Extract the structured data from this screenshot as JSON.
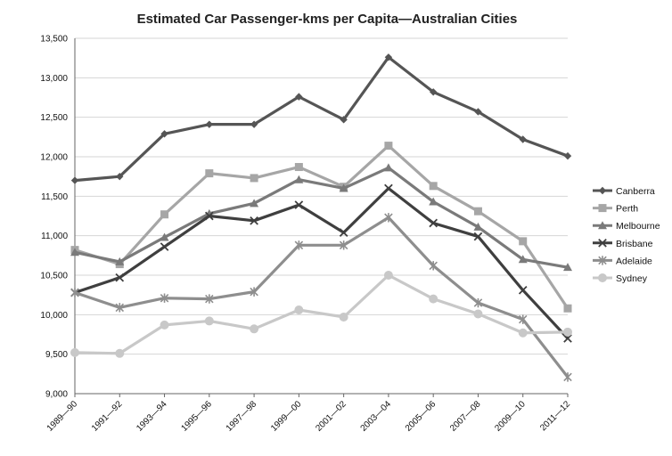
{
  "chart_data": {
    "type": "line",
    "title": "Estimated Car Passenger-kms per Capita—Australian Cities",
    "xlabel": "",
    "ylabel": "",
    "categories": [
      "1989—90",
      "1991—92",
      "1993—94",
      "1995—96",
      "1997—98",
      "1999—00",
      "2001—02",
      "2003—04",
      "2005—06",
      "2007—08",
      "2009—10",
      "2011—12"
    ],
    "ylim": [
      9000,
      13500
    ],
    "yticks": [
      9000,
      9500,
      10000,
      10500,
      11000,
      11500,
      12000,
      12500,
      13000,
      13500
    ],
    "ytick_labels": [
      "9,000",
      "9,500",
      "10,000",
      "10,500",
      "11,000",
      "11,500",
      "12,000",
      "12,500",
      "13,000",
      "13,500"
    ],
    "grid": true,
    "legend_position": "right",
    "series": [
      {
        "name": "Canberra",
        "color": "#555555",
        "marker": "diamond",
        "values": [
          11700,
          11750,
          12290,
          12410,
          12410,
          12760,
          12470,
          13260,
          12820,
          12570,
          12220,
          12010
        ]
      },
      {
        "name": "Perth",
        "color": "#a6a6a6",
        "marker": "square",
        "values": [
          10820,
          10640,
          11270,
          11790,
          11730,
          11870,
          11620,
          12140,
          11630,
          11310,
          10930,
          10080
        ]
      },
      {
        "name": "Melbourne",
        "color": "#7a7a7a",
        "marker": "triangle",
        "values": [
          10790,
          10670,
          10980,
          11280,
          11410,
          11710,
          11600,
          11860,
          11430,
          11110,
          10700,
          10600
        ]
      },
      {
        "name": "Brisbane",
        "color": "#3f3f3f",
        "marker": "x",
        "values": [
          10280,
          10470,
          10860,
          11250,
          11190,
          11390,
          11040,
          11600,
          11160,
          10990,
          10310,
          9700
        ]
      },
      {
        "name": "Adelaide",
        "color": "#8e8e8e",
        "marker": "star",
        "values": [
          10280,
          10090,
          10210,
          10200,
          10290,
          10880,
          10880,
          11230,
          10620,
          10150,
          9940,
          9210
        ]
      },
      {
        "name": "Sydney",
        "color": "#c8c8c8",
        "marker": "circle",
        "values": [
          9520,
          9510,
          9870,
          9920,
          9820,
          10060,
          9970,
          10500,
          10200,
          10010,
          9770,
          9780
        ]
      }
    ]
  }
}
